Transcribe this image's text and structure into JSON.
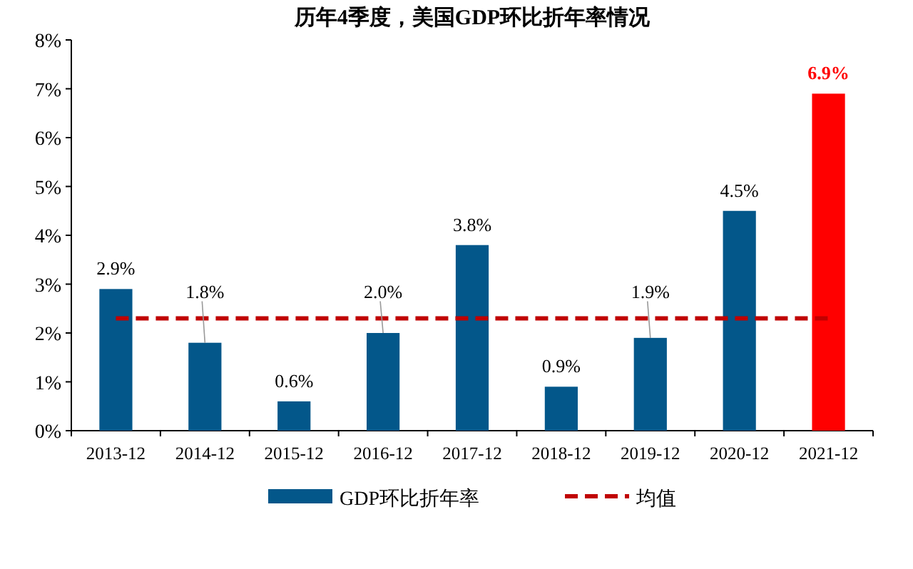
{
  "chart_data": {
    "type": "bar",
    "title": "历年4季度，美国GDP环比折年率情况",
    "categories": [
      "2013-12",
      "2014-12",
      "2015-12",
      "2016-12",
      "2017-12",
      "2018-12",
      "2019-12",
      "2020-12",
      "2021-12"
    ],
    "series": [
      {
        "name": "GDP环比折年率",
        "color": "#03578a",
        "colors": [
          "#03578a",
          "#03578a",
          "#03578a",
          "#03578a",
          "#03578a",
          "#03578a",
          "#03578a",
          "#03578a",
          "#ff0000"
        ],
        "values": [
          2.9,
          1.8,
          0.6,
          2.0,
          3.8,
          0.9,
          1.9,
          4.5,
          6.9
        ],
        "value_labels": [
          "2.9%",
          "1.8%",
          "0.6%",
          "2.0%",
          "3.8%",
          "0.9%",
          "1.9%",
          "4.5%",
          "6.9%"
        ]
      }
    ],
    "ylim": [
      0,
      8
    ],
    "yticks": [
      {
        "value": 0,
        "label": "0%"
      },
      {
        "value": 1,
        "label": "1%"
      },
      {
        "value": 2,
        "label": "2%"
      },
      {
        "value": 3,
        "label": "3%"
      },
      {
        "value": 4,
        "label": "4%"
      },
      {
        "value": 5,
        "label": "5%"
      },
      {
        "value": 6,
        "label": "6%"
      },
      {
        "value": 7,
        "label": "7%"
      },
      {
        "value": 8,
        "label": "8%"
      }
    ],
    "ref_lines": [
      {
        "axis": "y",
        "value": 2.3,
        "label": "均值",
        "color": "#c00000",
        "line_style": "dashed"
      }
    ],
    "legend": "bottom",
    "grid": false
  }
}
